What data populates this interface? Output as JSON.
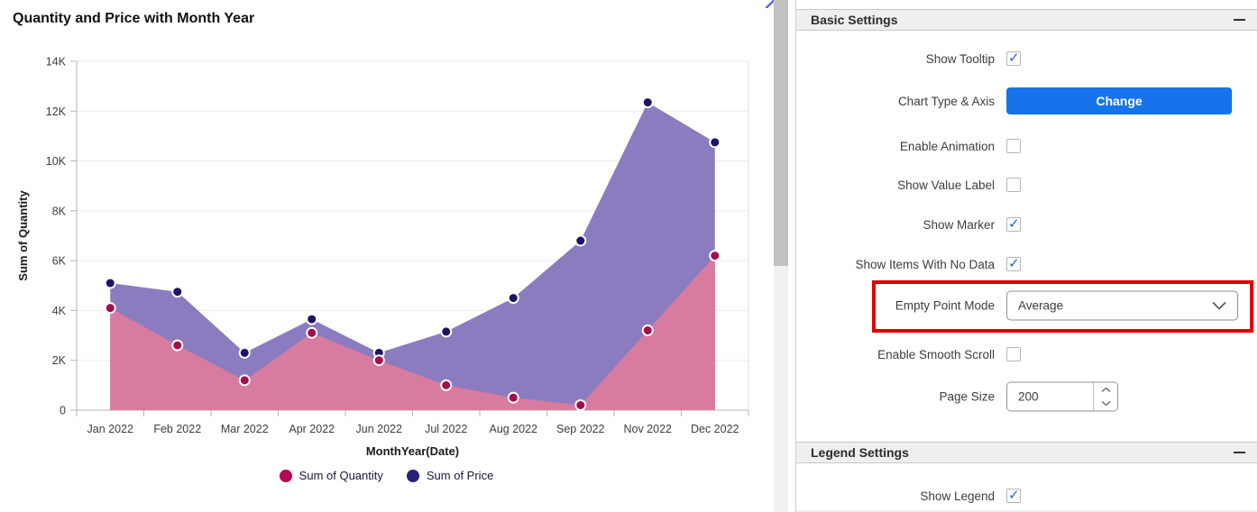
{
  "chart": {
    "title": "Quantity and Price with Month Year",
    "y_axis_title": "Sum of Quantity",
    "x_axis_title": "MonthYear(Date)",
    "legend": [
      {
        "label": "Sum of Quantity",
        "color": "#b30a55"
      },
      {
        "label": "Sum of Price",
        "color": "#27217b"
      }
    ]
  },
  "chart_data": {
    "type": "area",
    "title": "Quantity and Price with Month Year",
    "xlabel": "MonthYear(Date)",
    "ylabel": "Sum of Quantity",
    "categories": [
      "Jan 2022",
      "Feb 2022",
      "Mar 2022",
      "Apr 2022",
      "Jun 2022",
      "Jul 2022",
      "Aug 2022",
      "Sep 2022",
      "Nov 2022",
      "Dec 2022"
    ],
    "series": [
      {
        "name": "Sum of Quantity",
        "values": [
          4100,
          2600,
          1200,
          3100,
          2000,
          1000,
          500,
          200,
          3200,
          6200
        ],
        "area_color": "#d77ba1",
        "marker_color": "#a50d4e"
      },
      {
        "name": "Sum of Price",
        "values": [
          5100,
          4750,
          2300,
          3650,
          2300,
          3150,
          4500,
          6800,
          12350,
          10750
        ],
        "area_color": "#8b7cc0",
        "marker_color": "#1c1566"
      }
    ],
    "ylim": [
      0,
      14000
    ],
    "y_tick_labels": [
      "0",
      "2K",
      "4K",
      "6K",
      "8K",
      "10K",
      "12K",
      "14K"
    ],
    "grid": true,
    "legend_position": "bottom"
  },
  "settings": {
    "basic": {
      "title": "Basic Settings",
      "rows": [
        {
          "label": "Show Tooltip",
          "type": "checkbox",
          "checked": true
        },
        {
          "label": "Chart Type & Axis",
          "type": "button",
          "button_label": "Change"
        },
        {
          "label": "Enable Animation",
          "type": "checkbox",
          "checked": false
        },
        {
          "label": "Show Value Label",
          "type": "checkbox",
          "checked": false
        },
        {
          "label": "Show Marker",
          "type": "checkbox",
          "checked": true
        },
        {
          "label": "Show Items With No Data",
          "type": "checkbox",
          "checked": true
        },
        {
          "label": "Empty Point Mode",
          "type": "select",
          "value": "Average",
          "highlighted": true
        },
        {
          "label": "Enable Smooth Scroll",
          "type": "checkbox",
          "checked": false
        },
        {
          "label": "Page Size",
          "type": "number",
          "value": "200"
        }
      ]
    },
    "legend_section": {
      "title": "Legend Settings",
      "rows": [
        {
          "label": "Show Legend",
          "type": "checkbox",
          "checked": true
        }
      ]
    },
    "highlight_color": "#de0000"
  }
}
